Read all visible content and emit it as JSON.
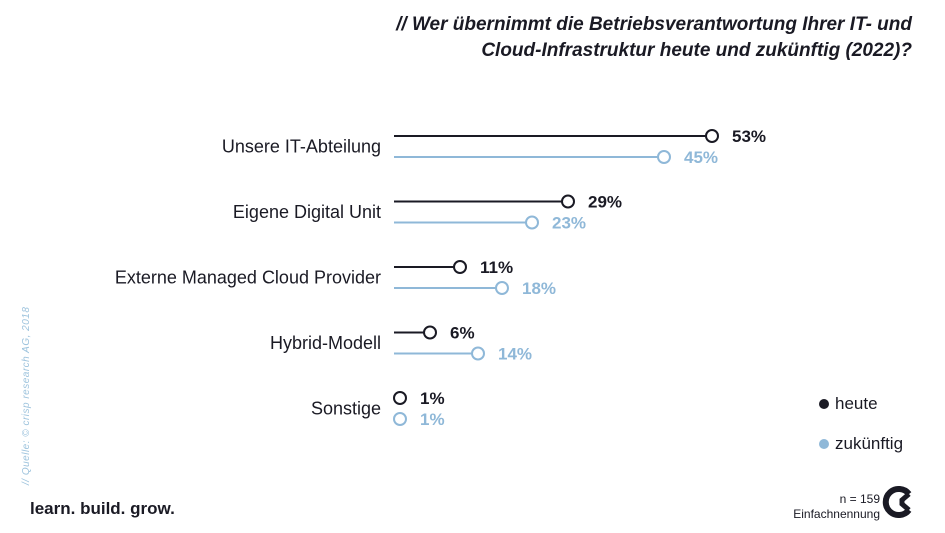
{
  "title": {
    "line1": "// Wer übernimmt die Betriebsverantwortung Ihrer IT- und",
    "line2": "Cloud-Infrastruktur heute und zukünftig (2022)?"
  },
  "source": "// Quelle: © crisp research AG, 2018",
  "tagline": "learn. build. grow.",
  "note": {
    "n": "n = 159",
    "type": "Einfachnennung"
  },
  "colors": {
    "heute": "#1a1a24",
    "zukuenftig": "#8fb8d8"
  },
  "chart_data": {
    "type": "lollipop",
    "categories": [
      "Unsere IT-Abteilung",
      "Eigene Digital Unit",
      "Externe Managed Cloud Provider",
      "Hybrid-Modell",
      "Sonstige"
    ],
    "series": [
      {
        "name": "heute",
        "values": [
          53,
          29,
          11,
          6,
          1
        ],
        "labels": [
          "53%",
          "29%",
          "11%",
          "6%",
          "1%"
        ]
      },
      {
        "name": "zukünftig",
        "values": [
          45,
          23,
          18,
          14,
          1
        ],
        "labels": [
          "45%",
          "23%",
          "18%",
          "14%",
          "1%"
        ]
      }
    ],
    "legend_position": "bottom-right",
    "xlim": [
      0,
      100
    ]
  }
}
